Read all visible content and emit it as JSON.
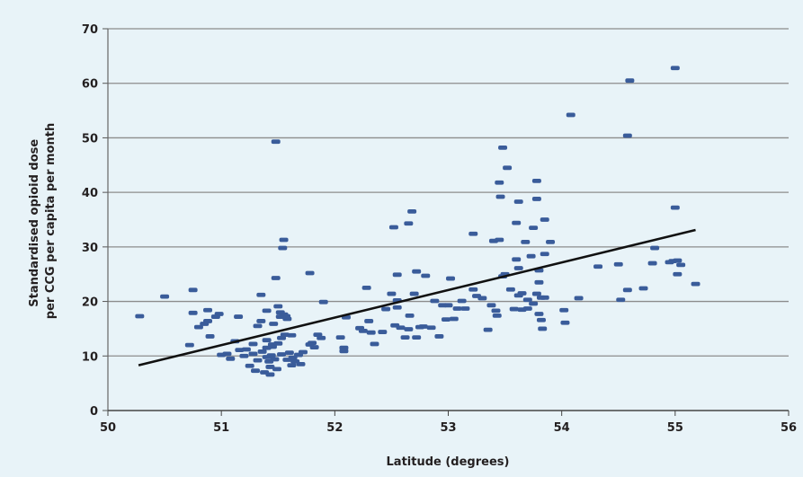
{
  "chart_data": {
    "type": "scatter",
    "xlabel": "Latitude (degrees)",
    "ylabel_lines": [
      "Standardised opioid dose",
      "per CCG per capita per month"
    ],
    "xlim": [
      50,
      56
    ],
    "ylim": [
      0,
      70
    ],
    "x_ticks": [
      "50",
      "51",
      "52",
      "53",
      "54",
      "55",
      "56"
    ],
    "y_ticks": [
      "0",
      "10",
      "20",
      "30",
      "40",
      "50",
      "60",
      "70"
    ],
    "grid": "horizontal",
    "colors": {
      "points": "#3a5c9a",
      "trendline": "#111111",
      "grid": "#8c8c8c",
      "background": "#e8f3f8"
    },
    "trendline": {
      "x": [
        50.27,
        55.18
      ],
      "y": [
        8.3,
        33.1
      ]
    },
    "points": [
      [
        50.28,
        17.3
      ],
      [
        50.5,
        20.9
      ],
      [
        50.72,
        12.0
      ],
      [
        50.75,
        22.1
      ],
      [
        50.75,
        17.9
      ],
      [
        50.8,
        15.3
      ],
      [
        50.85,
        15.9
      ],
      [
        50.88,
        16.4
      ],
      [
        50.88,
        18.4
      ],
      [
        50.9,
        13.6
      ],
      [
        50.95,
        17.2
      ],
      [
        50.98,
        17.7
      ],
      [
        51.0,
        10.2
      ],
      [
        51.05,
        10.4
      ],
      [
        51.08,
        9.5
      ],
      [
        51.12,
        12.7
      ],
      [
        51.15,
        17.2
      ],
      [
        51.16,
        11.1
      ],
      [
        51.2,
        10.0
      ],
      [
        51.22,
        11.2
      ],
      [
        51.25,
        8.2
      ],
      [
        51.28,
        10.4
      ],
      [
        51.28,
        12.2
      ],
      [
        51.3,
        7.3
      ],
      [
        51.32,
        9.2
      ],
      [
        51.32,
        15.5
      ],
      [
        51.35,
        21.2
      ],
      [
        51.35,
        16.4
      ],
      [
        51.36,
        10.8
      ],
      [
        51.38,
        7.0
      ],
      [
        51.4,
        9.8
      ],
      [
        51.4,
        12.9
      ],
      [
        51.4,
        11.5
      ],
      [
        51.4,
        18.3
      ],
      [
        51.42,
        9.0
      ],
      [
        51.43,
        8.0
      ],
      [
        51.43,
        6.6
      ],
      [
        51.44,
        10.1
      ],
      [
        51.45,
        11.7
      ],
      [
        51.45,
        12.1
      ],
      [
        51.46,
        15.9
      ],
      [
        51.47,
        9.4
      ],
      [
        51.48,
        24.3
      ],
      [
        51.48,
        49.3
      ],
      [
        51.49,
        7.6
      ],
      [
        51.5,
        19.1
      ],
      [
        51.5,
        12.3
      ],
      [
        51.52,
        17.2
      ],
      [
        51.52,
        18.0
      ],
      [
        51.53,
        13.3
      ],
      [
        51.53,
        10.3
      ],
      [
        51.54,
        29.8
      ],
      [
        51.55,
        31.3
      ],
      [
        51.55,
        17.6
      ],
      [
        51.56,
        13.9
      ],
      [
        51.57,
        17.3
      ],
      [
        51.58,
        16.8
      ],
      [
        51.58,
        9.3
      ],
      [
        51.6,
        10.6
      ],
      [
        51.62,
        13.8
      ],
      [
        51.62,
        8.3
      ],
      [
        51.63,
        9.7
      ],
      [
        51.65,
        9.0
      ],
      [
        51.68,
        10.2
      ],
      [
        51.7,
        8.5
      ],
      [
        51.72,
        10.7
      ],
      [
        51.78,
        25.2
      ],
      [
        51.78,
        12.1
      ],
      [
        51.8,
        12.4
      ],
      [
        51.82,
        11.6
      ],
      [
        51.85,
        13.9
      ],
      [
        51.88,
        13.3
      ],
      [
        51.9,
        19.9
      ],
      [
        52.05,
        13.4
      ],
      [
        52.08,
        11.5
      ],
      [
        52.08,
        10.9
      ],
      [
        52.1,
        17.1
      ],
      [
        52.22,
        15.1
      ],
      [
        52.25,
        14.6
      ],
      [
        52.28,
        22.5
      ],
      [
        52.3,
        16.4
      ],
      [
        52.32,
        14.3
      ],
      [
        52.35,
        12.2
      ],
      [
        52.42,
        14.4
      ],
      [
        52.45,
        18.6
      ],
      [
        52.5,
        21.4
      ],
      [
        52.52,
        33.6
      ],
      [
        52.53,
        15.6
      ],
      [
        52.55,
        20.2
      ],
      [
        52.55,
        18.9
      ],
      [
        52.55,
        24.9
      ],
      [
        52.58,
        15.2
      ],
      [
        52.62,
        13.4
      ],
      [
        52.65,
        34.3
      ],
      [
        52.65,
        14.9
      ],
      [
        52.66,
        17.4
      ],
      [
        52.68,
        36.5
      ],
      [
        52.7,
        21.4
      ],
      [
        52.72,
        25.5
      ],
      [
        52.72,
        13.4
      ],
      [
        52.75,
        15.3
      ],
      [
        52.78,
        15.4
      ],
      [
        52.8,
        24.7
      ],
      [
        52.85,
        15.2
      ],
      [
        52.88,
        20.1
      ],
      [
        52.92,
        13.6
      ],
      [
        52.95,
        19.3
      ],
      [
        52.98,
        16.7
      ],
      [
        53.0,
        19.3
      ],
      [
        53.02,
        24.2
      ],
      [
        53.05,
        16.8
      ],
      [
        53.08,
        18.7
      ],
      [
        53.12,
        20.1
      ],
      [
        53.15,
        18.7
      ],
      [
        53.22,
        32.4
      ],
      [
        53.22,
        22.2
      ],
      [
        53.25,
        21.0
      ],
      [
        53.3,
        20.6
      ],
      [
        53.35,
        14.8
      ],
      [
        53.38,
        19.3
      ],
      [
        53.4,
        31.1
      ],
      [
        53.42,
        18.3
      ],
      [
        53.43,
        17.4
      ],
      [
        53.45,
        31.3
      ],
      [
        53.45,
        41.8
      ],
      [
        53.46,
        39.2
      ],
      [
        53.48,
        48.2
      ],
      [
        53.48,
        24.6
      ],
      [
        53.5,
        25.0
      ],
      [
        53.52,
        44.5
      ],
      [
        53.55,
        22.2
      ],
      [
        53.58,
        18.6
      ],
      [
        53.6,
        34.4
      ],
      [
        53.6,
        27.7
      ],
      [
        53.62,
        38.3
      ],
      [
        53.62,
        26.1
      ],
      [
        53.62,
        21.1
      ],
      [
        53.65,
        18.5
      ],
      [
        53.65,
        21.5
      ],
      [
        53.68,
        30.9
      ],
      [
        53.7,
        18.7
      ],
      [
        53.7,
        20.3
      ],
      [
        53.73,
        28.3
      ],
      [
        53.75,
        33.5
      ],
      [
        53.75,
        19.6
      ],
      [
        53.78,
        42.1
      ],
      [
        53.78,
        38.8
      ],
      [
        53.78,
        21.4
      ],
      [
        53.8,
        17.7
      ],
      [
        53.8,
        25.7
      ],
      [
        53.8,
        23.5
      ],
      [
        53.82,
        20.7
      ],
      [
        53.82,
        16.6
      ],
      [
        53.83,
        15.0
      ],
      [
        53.85,
        28.7
      ],
      [
        53.85,
        35.0
      ],
      [
        53.85,
        20.7
      ],
      [
        53.9,
        30.9
      ],
      [
        54.02,
        18.4
      ],
      [
        54.03,
        16.1
      ],
      [
        54.08,
        54.2
      ],
      [
        54.15,
        20.6
      ],
      [
        54.32,
        26.4
      ],
      [
        54.5,
        26.8
      ],
      [
        54.52,
        20.3
      ],
      [
        54.58,
        22.1
      ],
      [
        54.58,
        50.4
      ],
      [
        54.6,
        60.5
      ],
      [
        54.72,
        22.4
      ],
      [
        54.8,
        27.0
      ],
      [
        54.82,
        29.8
      ],
      [
        54.95,
        27.2
      ],
      [
        54.98,
        27.4
      ],
      [
        55.0,
        62.8
      ],
      [
        55.0,
        37.2
      ],
      [
        55.02,
        25.0
      ],
      [
        55.02,
        27.5
      ],
      [
        55.05,
        26.7
      ],
      [
        55.18,
        23.2
      ]
    ]
  }
}
